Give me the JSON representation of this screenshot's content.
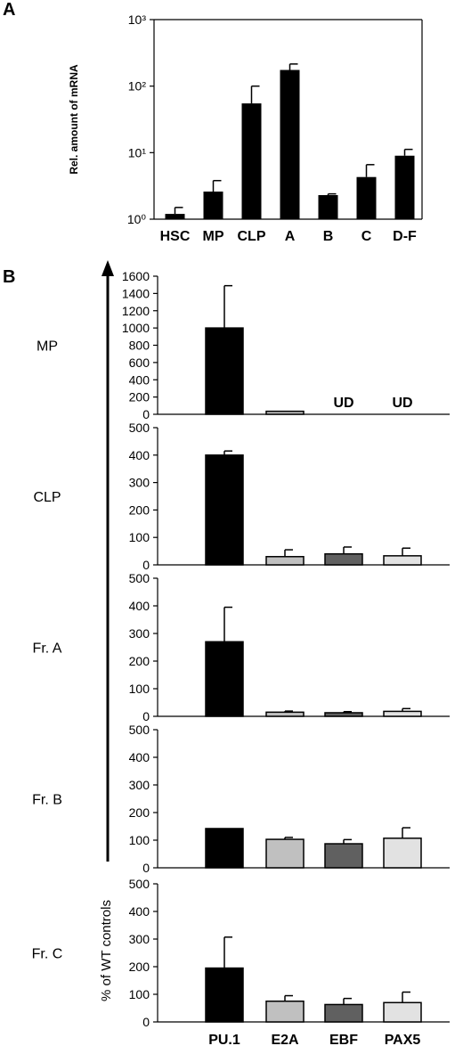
{
  "chart_data": [
    {
      "panel": "A",
      "type": "bar",
      "ylabel": "Rel. amount of mRNA",
      "yscale": "log",
      "ylim": [
        1,
        1000
      ],
      "yticks": [
        "10⁰",
        "10¹",
        "10²",
        "10³"
      ],
      "categories": [
        "HSC",
        "MP",
        "CLP",
        "A",
        "B",
        "C",
        "D-F"
      ],
      "values": [
        1.2,
        2.6,
        55,
        175,
        2.3,
        4.3,
        9.0
      ],
      "errors": [
        0.3,
        1.2,
        45,
        40,
        0.1,
        2.3,
        2.2
      ],
      "bar_color": "#000000"
    },
    {
      "panel": "B",
      "type": "bar",
      "ylabel": "% of WT controls",
      "categories": [
        "PU.1",
        "E2A",
        "EBF",
        "PAX5"
      ],
      "colors": [
        "#000000",
        "#c0c0c0",
        "#606060",
        "#e2e2e2"
      ],
      "rows": [
        {
          "label": "MP",
          "ylim": [
            0,
            1600
          ],
          "yticks": [
            0,
            200,
            400,
            600,
            800,
            1000,
            1200,
            1400,
            1600
          ],
          "values": [
            1000,
            35,
            null,
            null
          ],
          "errors": [
            490,
            0,
            null,
            null
          ],
          "annotations": [
            "",
            "",
            "UD",
            "UD"
          ]
        },
        {
          "label": "CLP",
          "ylim": [
            0,
            500
          ],
          "yticks": [
            0,
            100,
            200,
            300,
            400,
            500
          ],
          "values": [
            400,
            30,
            40,
            33
          ],
          "errors": [
            15,
            25,
            25,
            28
          ],
          "annotations": [
            "",
            "",
            "",
            ""
          ]
        },
        {
          "label": "Fr. A",
          "ylim": [
            0,
            500
          ],
          "yticks": [
            0,
            100,
            200,
            300,
            400,
            500
          ],
          "values": [
            270,
            15,
            13,
            18
          ],
          "errors": [
            125,
            4,
            4,
            10
          ],
          "annotations": [
            "",
            "",
            "",
            ""
          ]
        },
        {
          "label": "Fr. B",
          "ylim": [
            0,
            500
          ],
          "yticks": [
            0,
            100,
            200,
            300,
            400,
            500
          ],
          "values": [
            142,
            103,
            87,
            107
          ],
          "errors": [
            0,
            7,
            15,
            38
          ],
          "annotations": [
            "",
            "",
            "",
            ""
          ]
        },
        {
          "label": "Fr. C",
          "ylim": [
            0,
            500
          ],
          "yticks": [
            0,
            100,
            200,
            300,
            400,
            500
          ],
          "values": [
            195,
            75,
            63,
            70
          ],
          "errors": [
            112,
            20,
            22,
            38
          ],
          "annotations": [
            "",
            "",
            "",
            ""
          ]
        }
      ]
    }
  ]
}
